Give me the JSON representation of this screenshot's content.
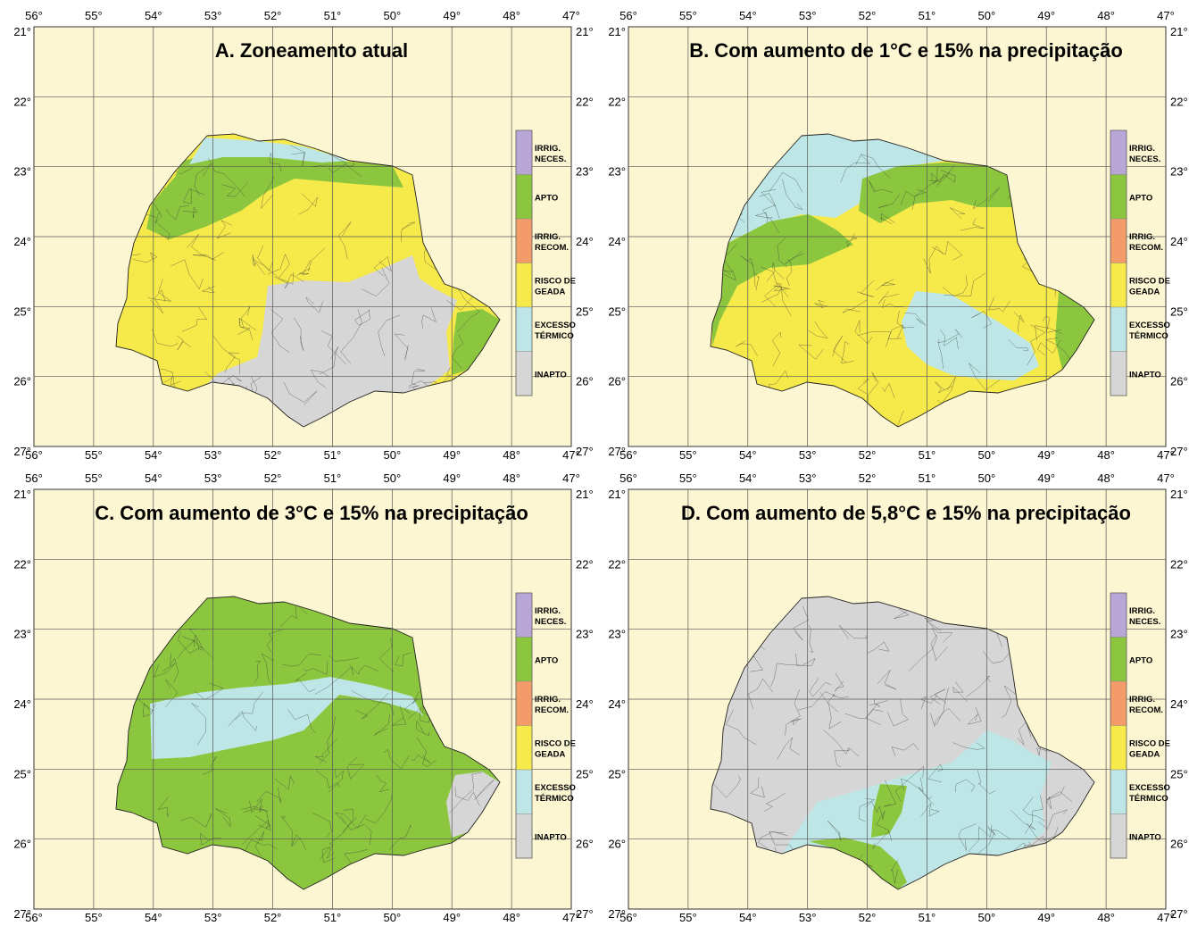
{
  "colors": {
    "background": "#fdf6d2",
    "grid": "#555555",
    "irrig_neces": "#b7a6d6",
    "apto": "#8cc63f",
    "irrig_recom": "#f49b6a",
    "risco_geada": "#f6e94a",
    "excesso_termico": "#bfe6e6",
    "inapto": "#d6d6d6",
    "border": "#222222"
  },
  "legend": [
    {
      "key": "irrig_neces",
      "lines": [
        "IRRIG.",
        "NECES."
      ]
    },
    {
      "key": "apto",
      "lines": [
        "APTO"
      ]
    },
    {
      "key": "irrig_recom",
      "lines": [
        "IRRIG.",
        "RECOM."
      ]
    },
    {
      "key": "risco_geada",
      "lines": [
        "RISCO DE",
        "GEADA"
      ]
    },
    {
      "key": "excesso_termico",
      "lines": [
        "EXCESSO",
        "TÉRMICO"
      ]
    },
    {
      "key": "inapto",
      "lines": [
        "INAPTO"
      ]
    }
  ],
  "axes": {
    "longitude_labels": [
      "56°",
      "55°",
      "54°",
      "53°",
      "52°",
      "51°",
      "50°",
      "49°",
      "48°",
      "47°"
    ],
    "latitude_labels": [
      "21°",
      "22°",
      "23°",
      "24°",
      "25°",
      "26°",
      "27°"
    ]
  },
  "panels": [
    {
      "id": "A",
      "title": "A. Zoneamento atual",
      "fill": "risco_geada",
      "secondary": "apto",
      "tertiary": "inapto"
    },
    {
      "id": "B",
      "title": "B. Com aumento de 1°C e 15% na precipitação",
      "fill": "risco_geada",
      "secondary": "apto",
      "tertiary": "excesso_termico"
    },
    {
      "id": "C",
      "title": "C. Com aumento de 3°C e 15% na precipitação",
      "fill": "apto",
      "secondary": "excesso_termico",
      "tertiary": "inapto"
    },
    {
      "id": "D",
      "title": "D. Com aumento de 5,8°C e 15% na precipitação",
      "fill": "inapto",
      "secondary": "excesso_termico",
      "tertiary": "apto"
    }
  ]
}
